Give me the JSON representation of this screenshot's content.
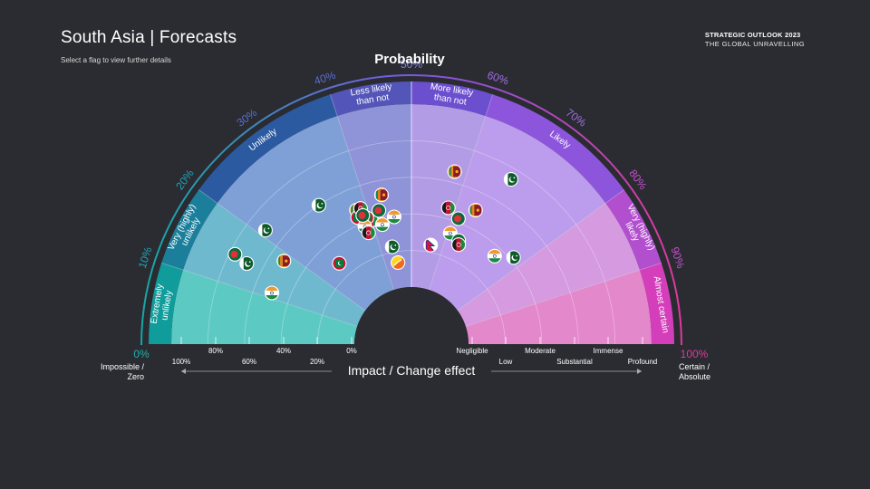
{
  "page": {
    "title": "South Asia | Forecasts",
    "subtitle": "Select a flag to view further details",
    "brand_line1": "STRATEGIC OUTLOOK 2023",
    "brand_line2": "THE GLOBAL UNRAVELLING"
  },
  "chart_data": {
    "type": "scatter",
    "title": "Probability",
    "xlabel": "Impact / Change effect",
    "probability_axis": {
      "ticks": [
        "0%",
        "10%",
        "20%",
        "30%",
        "40%",
        "50%",
        "60%",
        "70%",
        "80%",
        "90%",
        "100%"
      ],
      "end_left": "0%",
      "end_left_label_1": "Impossible /",
      "end_left_label_2": "Zero",
      "end_right": "100%",
      "end_right_label_1": "Certain /",
      "end_right_label_2": "Absolute"
    },
    "bands": [
      {
        "id": "extremely-unlikely",
        "lines": [
          "Extremely",
          "unlikely"
        ],
        "range": [
          0,
          10
        ],
        "color": "#0f9c9a"
      },
      {
        "id": "very-unlikely",
        "lines": [
          "Very (highly)",
          "unlikely"
        ],
        "range": [
          10,
          20
        ],
        "color": "#1b7f9c"
      },
      {
        "id": "unlikely",
        "lines": [
          "Unlikely"
        ],
        "range": [
          20,
          40
        ],
        "color": "#2b5aa0"
      },
      {
        "id": "less-likely",
        "lines": [
          "Less likely",
          "than not"
        ],
        "range": [
          40,
          50
        ],
        "color": "#5355b8"
      },
      {
        "id": "more-likely",
        "lines": [
          "More likely",
          "than not"
        ],
        "range": [
          50,
          60
        ],
        "color": "#6c4fcf"
      },
      {
        "id": "likely",
        "lines": [
          "Likely"
        ],
        "range": [
          60,
          80
        ],
        "color": "#8d55dc"
      },
      {
        "id": "very-likely",
        "lines": [
          "Very (highly)",
          "likely"
        ],
        "range": [
          80,
          90
        ],
        "color": "#b24fcf"
      },
      {
        "id": "almost-certain",
        "lines": [
          "Almost certain"
        ],
        "range": [
          90,
          100
        ],
        "color": "#d53ebb"
      }
    ],
    "impact_left_ticks": [
      "100%",
      "80%",
      "60%",
      "40%",
      "20%",
      "0%"
    ],
    "impact_right_ticks": [
      "Negligible",
      "Low",
      "Moderate",
      "Substantial",
      "Immense",
      "Profound"
    ],
    "colors": {
      "teal": "#17b3a8",
      "purple": "#8a5ce0",
      "pink": "#e0399f"
    },
    "points": [
      {
        "country": "Sri Lanka",
        "probability": 37.6,
        "impact": 0.48
      },
      {
        "country": "Maldives",
        "probability": 37.2,
        "impact": 0.44
      },
      {
        "country": "Afghanistan",
        "probability": 38.6,
        "impact": 0.48
      },
      {
        "country": "Afghanistan",
        "probability": 40.0,
        "impact": 0.4
      },
      {
        "country": "Maldives",
        "probability": 39.2,
        "impact": 0.42
      },
      {
        "country": "India",
        "probability": 38.0,
        "impact": 0.38
      },
      {
        "country": "Bangladesh",
        "probability": 38.5,
        "impact": 0.44
      },
      {
        "country": "Sri Lanka",
        "probability": 43.7,
        "impact": 0.52
      },
      {
        "country": "Bangladesh",
        "probability": 42.4,
        "impact": 0.44
      },
      {
        "country": "Afghanistan",
        "probability": 38.3,
        "impact": 0.34
      },
      {
        "country": "India",
        "probability": 42.4,
        "impact": 0.36
      },
      {
        "country": "India",
        "probability": 45.7,
        "impact": 0.39
      },
      {
        "country": "Pakistan",
        "probability": 31.3,
        "impact": 0.6
      },
      {
        "country": "Pakistan",
        "probability": 21.1,
        "impact": 0.7
      },
      {
        "country": "Bangladesh",
        "probability": 15.0,
        "impact": 0.77
      },
      {
        "country": "Pakistan",
        "probability": 14.5,
        "impact": 0.69
      },
      {
        "country": "Sri Lanka",
        "probability": 18.4,
        "impact": 0.52
      },
      {
        "country": "India",
        "probability": 11.2,
        "impact": 0.5
      },
      {
        "country": "Maldives",
        "probability": 26.8,
        "impact": 0.28
      },
      {
        "country": "Pakistan",
        "probability": 43.8,
        "impact": 0.23
      },
      {
        "country": "Bhutan",
        "probability": 44.8,
        "impact": 0.14
      },
      {
        "country": "Sri Lanka",
        "probability": 57.8,
        "impact": 0.66
      },
      {
        "country": "Pakistan",
        "probability": 67.3,
        "impact": 0.74
      },
      {
        "country": "Afghanistan",
        "probability": 58.4,
        "impact": 0.46
      },
      {
        "country": "Bangladesh",
        "probability": 61.4,
        "impact": 0.42
      },
      {
        "country": "Sri Lanka",
        "probability": 64.2,
        "impact": 0.5
      },
      {
        "country": "India",
        "probability": 60.7,
        "impact": 0.33
      },
      {
        "country": "Bangladesh",
        "probability": 63.6,
        "impact": 0.31
      },
      {
        "country": "Nepal",
        "probability": 56.1,
        "impact": 0.24
      },
      {
        "country": "Afghanistan",
        "probability": 64.1,
        "impact": 0.29
      },
      {
        "country": "India",
        "probability": 74.1,
        "impact": 0.35
      },
      {
        "country": "Pakistan",
        "probability": 77.6,
        "impact": 0.42
      }
    ]
  }
}
